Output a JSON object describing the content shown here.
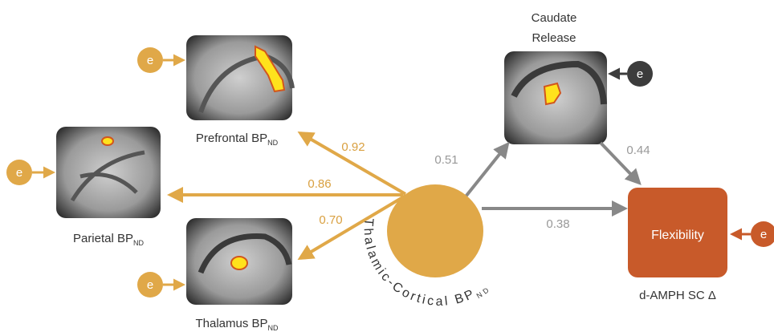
{
  "nodes": {
    "prefrontal": {
      "label": "Prefrontal BP",
      "sub": "ND"
    },
    "parietal": {
      "label": "Parietal BP",
      "sub": "ND"
    },
    "thalamus": {
      "label": "Thalamus BP",
      "sub": "ND"
    },
    "caudate": {
      "lines": [
        "Caudate",
        "Release"
      ]
    },
    "latent": {
      "label": "Thalamic-Cortical BP",
      "sub": "ND"
    },
    "flexibility": {
      "label": "Flexibility",
      "caption": "d-AMPH SC Δ"
    }
  },
  "edges": [
    {
      "from": "latent",
      "to": "prefrontal",
      "label": "0.92"
    },
    {
      "from": "latent",
      "to": "parietal",
      "label": "0.86"
    },
    {
      "from": "latent",
      "to": "thalamus",
      "label": "0.70"
    },
    {
      "from": "latent",
      "to": "caudate",
      "label": "0.51"
    },
    {
      "from": "latent",
      "to": "flexibility",
      "label": "0.38"
    },
    {
      "from": "caudate",
      "to": "flexibility",
      "label": "0.44"
    }
  ],
  "errors": [
    "e",
    "e",
    "e",
    "e",
    "e"
  ]
}
